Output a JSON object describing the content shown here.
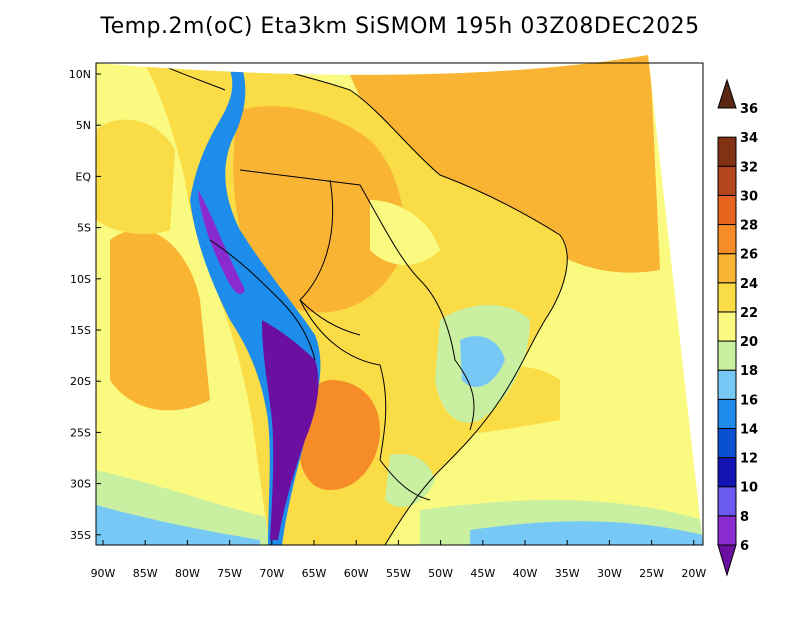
{
  "title": "Temp.2m(oC) Eta3km SiSMOM 195h 03Z08DEC2025",
  "latitude_labels": [
    "10N",
    "5N",
    "EQ",
    "5S",
    "10S",
    "15S",
    "20S",
    "25S",
    "30S",
    "35S"
  ],
  "longitude_labels": [
    "90W",
    "85W",
    "80W",
    "75W",
    "70W",
    "65W",
    "60W",
    "55W",
    "50W",
    "45W",
    "40W",
    "35W",
    "30W",
    "25W",
    "20W"
  ],
  "colorbar": {
    "levels": [
      "6",
      "8",
      "10",
      "12",
      "14",
      "16",
      "18",
      "20",
      "22",
      "24",
      "26",
      "28",
      "30",
      "32",
      "34",
      "36"
    ],
    "colors": [
      "#6a0fa0",
      "#8a2bd0",
      "#6a5af0",
      "#1414b4",
      "#0a50d2",
      "#1e8ceb",
      "#78c8f5",
      "#c8f0a0",
      "#fafa80",
      "#fadc46",
      "#f8b432",
      "#f58c28",
      "#e6641e",
      "#b4461e",
      "#823214",
      "#5a2814"
    ]
  }
}
